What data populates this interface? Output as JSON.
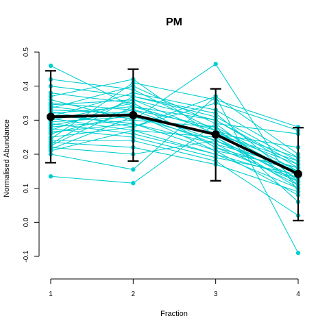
{
  "chart_data": {
    "type": "line",
    "title": "PM",
    "xlabel": "Fraction",
    "ylabel": "Normalised Abundance",
    "x": [
      1,
      2,
      3,
      4
    ],
    "xlim": [
      1,
      4
    ],
    "ylim": [
      -0.1,
      0.5
    ],
    "xticks": [
      "1",
      "2",
      "3",
      "4"
    ],
    "yticks": [
      "-0.1",
      "0.0",
      "0.1",
      "0.2",
      "0.3",
      "0.4",
      "0.5"
    ],
    "grid": false,
    "colors": {
      "profiles": "#00CED1",
      "mean": "#000000"
    },
    "profiles": [
      [
        0.46,
        0.34,
        0.3,
        0.16
      ],
      [
        0.42,
        0.39,
        0.27,
        0.14
      ],
      [
        0.4,
        0.37,
        0.31,
        0.18
      ],
      [
        0.38,
        0.35,
        0.22,
        0.12
      ],
      [
        0.37,
        0.42,
        0.25,
        0.1
      ],
      [
        0.36,
        0.3,
        0.465,
        0.09
      ],
      [
        0.35,
        0.33,
        0.28,
        0.15
      ],
      [
        0.345,
        0.36,
        0.26,
        0.17
      ],
      [
        0.34,
        0.31,
        0.24,
        0.13
      ],
      [
        0.335,
        0.4,
        0.29,
        0.11
      ],
      [
        0.33,
        0.32,
        0.23,
        0.16
      ],
      [
        0.325,
        0.28,
        0.37,
        0.2
      ],
      [
        0.32,
        0.34,
        0.27,
        0.14
      ],
      [
        0.315,
        0.29,
        0.21,
        0.08
      ],
      [
        0.31,
        0.38,
        0.33,
        0.19
      ],
      [
        0.305,
        0.27,
        0.25,
        0.12
      ],
      [
        0.3,
        0.35,
        0.22,
        0.15
      ],
      [
        0.295,
        0.31,
        0.26,
        0.18
      ],
      [
        0.29,
        0.26,
        0.2,
        0.1
      ],
      [
        0.285,
        0.33,
        0.24,
        0.13
      ],
      [
        0.28,
        0.3,
        0.28,
        0.06
      ],
      [
        0.275,
        0.25,
        0.19,
        0.14
      ],
      [
        0.27,
        0.36,
        0.3,
        0.17
      ],
      [
        0.265,
        0.29,
        0.23,
        0.11
      ],
      [
        0.26,
        0.32,
        0.21,
        0.16
      ],
      [
        0.25,
        0.28,
        0.35,
        0.27
      ],
      [
        0.245,
        0.41,
        0.36,
        0.28
      ],
      [
        0.24,
        0.24,
        0.18,
        0.02
      ],
      [
        0.235,
        0.22,
        0.17,
        0.09
      ],
      [
        0.23,
        0.37,
        0.32,
        0.12
      ],
      [
        0.225,
        0.34,
        0.27,
        0.19
      ],
      [
        0.22,
        0.2,
        0.24,
        0.15
      ],
      [
        0.215,
        0.31,
        0.26,
        0.22
      ],
      [
        0.21,
        0.27,
        0.2,
        0.13
      ],
      [
        0.2,
        0.155,
        0.37,
        -0.09
      ],
      [
        0.135,
        0.115,
        0.29,
        0.26
      ]
    ],
    "mean": {
      "values": [
        0.31,
        0.315,
        0.258,
        0.142
      ],
      "error_low": [
        0.175,
        0.18,
        0.122,
        0.005
      ],
      "error_high": [
        0.445,
        0.45,
        0.392,
        0.278
      ]
    }
  }
}
